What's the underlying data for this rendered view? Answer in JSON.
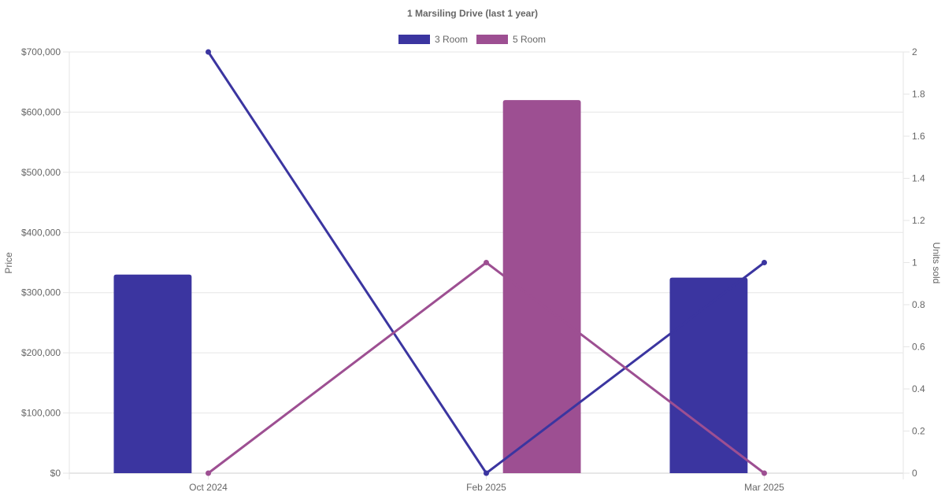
{
  "chart_data": {
    "type": "bar+line",
    "title": "1 Marsiling Drive (last 1 year)",
    "categories": [
      "Oct 2024",
      "Feb 2025",
      "Mar 2025"
    ],
    "y_left": {
      "label": "Price",
      "range": [
        0,
        700000
      ],
      "ticks": [
        "$0",
        "$100,000",
        "$200,000",
        "$300,000",
        "$400,000",
        "$500,000",
        "$600,000",
        "$700,000"
      ]
    },
    "y_right": {
      "label": "Units sold",
      "range": [
        0,
        2
      ],
      "ticks": [
        "0",
        "0.2",
        "0.4",
        "0.6",
        "0.8",
        "1",
        "1.2",
        "1.4",
        "1.6",
        "1.8",
        "2"
      ]
    },
    "grid": true,
    "legend_position": "top",
    "series": [
      {
        "name": "3 Room",
        "color": "#3b35a0",
        "price": [
          330000,
          null,
          325000
        ],
        "units_sold": [
          2,
          0,
          1
        ]
      },
      {
        "name": "5 Room",
        "color": "#9d4f92",
        "price": [
          null,
          620000,
          null
        ],
        "units_sold": [
          0,
          1,
          0
        ]
      }
    ]
  }
}
